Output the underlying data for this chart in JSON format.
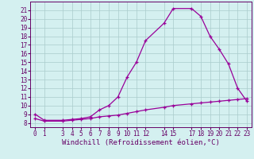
{
  "x_main": [
    0,
    1,
    3,
    4,
    5,
    6,
    7,
    8,
    9,
    10,
    11,
    12,
    14,
    15,
    17,
    18,
    19,
    20,
    21,
    22,
    23
  ],
  "y_main": [
    9.0,
    8.3,
    8.3,
    8.4,
    8.5,
    8.7,
    9.5,
    10.0,
    11.0,
    13.3,
    15.0,
    17.5,
    19.5,
    21.2,
    21.2,
    20.3,
    18.0,
    16.5,
    14.8,
    12.0,
    10.5
  ],
  "x_line2": [
    0,
    1,
    3,
    4,
    5,
    6,
    7,
    8,
    9,
    10,
    11,
    12,
    14,
    15,
    17,
    18,
    19,
    20,
    21,
    22,
    23
  ],
  "y_line2": [
    8.5,
    8.2,
    8.2,
    8.3,
    8.4,
    8.5,
    8.7,
    8.8,
    8.9,
    9.1,
    9.3,
    9.5,
    9.8,
    10.0,
    10.2,
    10.3,
    10.4,
    10.5,
    10.6,
    10.7,
    10.8
  ],
  "line_color": "#990099",
  "bg_color": "#d4f0f0",
  "grid_color": "#aacccc",
  "xlabel": "Windchill (Refroidissement éolien,°C)",
  "xlim": [
    -0.5,
    23.5
  ],
  "ylim": [
    7.5,
    22.0
  ],
  "xticks": [
    0,
    1,
    3,
    4,
    5,
    6,
    7,
    8,
    9,
    10,
    11,
    12,
    14,
    15,
    17,
    18,
    19,
    20,
    21,
    22,
    23
  ],
  "yticks": [
    8,
    9,
    10,
    11,
    12,
    13,
    14,
    15,
    16,
    17,
    18,
    19,
    20,
    21
  ],
  "font_color": "#660066",
  "tick_fontsize": 5.5,
  "xlabel_fontsize": 6.5
}
